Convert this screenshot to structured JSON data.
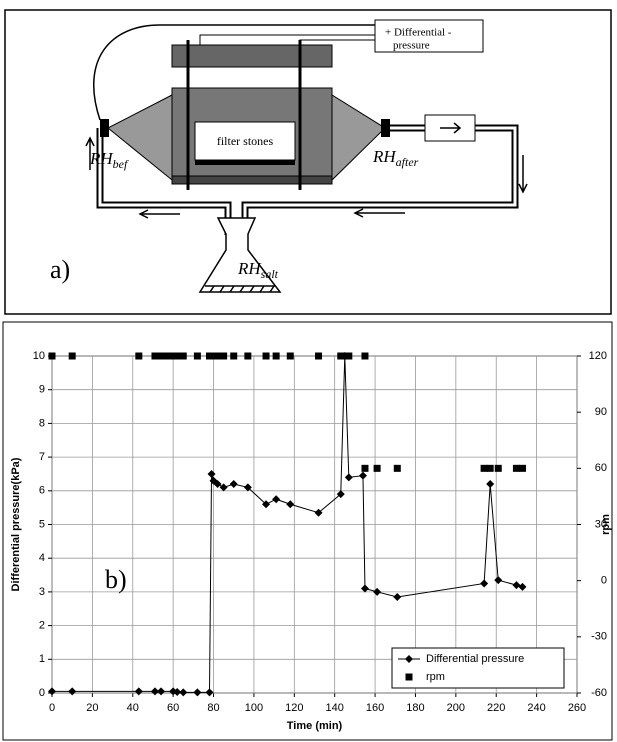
{
  "diagram": {
    "label": "a)",
    "pressure_box": [
      "+ Differential -",
      "pressure"
    ],
    "filter": "filter stones",
    "sensors": [
      {
        "main": "RH",
        "sub": "bef"
      },
      {
        "main": "RH",
        "sub": "after"
      },
      {
        "main": "RH",
        "sub": "salt"
      }
    ]
  },
  "chart_data": {
    "type": "line",
    "annotation": "b)",
    "x_label": "Time (min)",
    "y_label": "Differential pressure(kPa)",
    "y2_label": "rpm",
    "xlim": [
      0,
      260
    ],
    "xticks": [
      0,
      20,
      40,
      60,
      80,
      100,
      120,
      140,
      160,
      180,
      200,
      220,
      240,
      260
    ],
    "ylim": [
      0,
      10
    ],
    "yticks": [
      0,
      1,
      2,
      3,
      4,
      5,
      6,
      7,
      8,
      9,
      10
    ],
    "y2lim": [
      -60,
      120
    ],
    "y2ticks": [
      -60,
      -30,
      0,
      30,
      60,
      90,
      120
    ],
    "grid": true,
    "legend": "lower right",
    "series": [
      {
        "name": "Differential pressure",
        "color": "#000000",
        "marker": "diamond",
        "connected": true,
        "x": [
          0,
          10,
          43,
          51,
          54,
          60,
          62,
          65,
          72,
          78,
          79,
          80,
          82,
          85,
          90,
          97,
          106,
          111,
          118,
          132,
          143,
          145,
          147,
          154,
          155,
          161,
          171,
          214,
          217,
          221,
          230,
          233
        ],
        "values": [
          0.05,
          0.05,
          0.05,
          0.05,
          0.05,
          0.05,
          0.03,
          0.02,
          0.02,
          0.02,
          6.5,
          6.3,
          6.2,
          6.1,
          6.2,
          6.1,
          5.6,
          5.75,
          5.6,
          5.35,
          5.9,
          10,
          6.4,
          6.45,
          3.1,
          3.0,
          2.85,
          3.25,
          6.2,
          3.35,
          3.2,
          3.15
        ]
      },
      {
        "name": "rpm",
        "color": "#000000",
        "marker": "square",
        "connected": false,
        "axis": "y2",
        "x": [
          0,
          10,
          43,
          51,
          54,
          57,
          60,
          62,
          65,
          72,
          78,
          80,
          82,
          85,
          90,
          97,
          106,
          111,
          118,
          132,
          143,
          145,
          147,
          155,
          155,
          161,
          171,
          214,
          217,
          221,
          230,
          233
        ],
        "values": [
          120,
          120,
          120,
          120,
          120,
          120,
          120,
          120,
          120,
          120,
          120,
          120,
          120,
          120,
          120,
          120,
          120,
          120,
          120,
          120,
          120,
          120,
          120,
          120,
          60,
          60,
          60,
          60,
          60,
          60,
          60,
          60
        ]
      }
    ]
  }
}
